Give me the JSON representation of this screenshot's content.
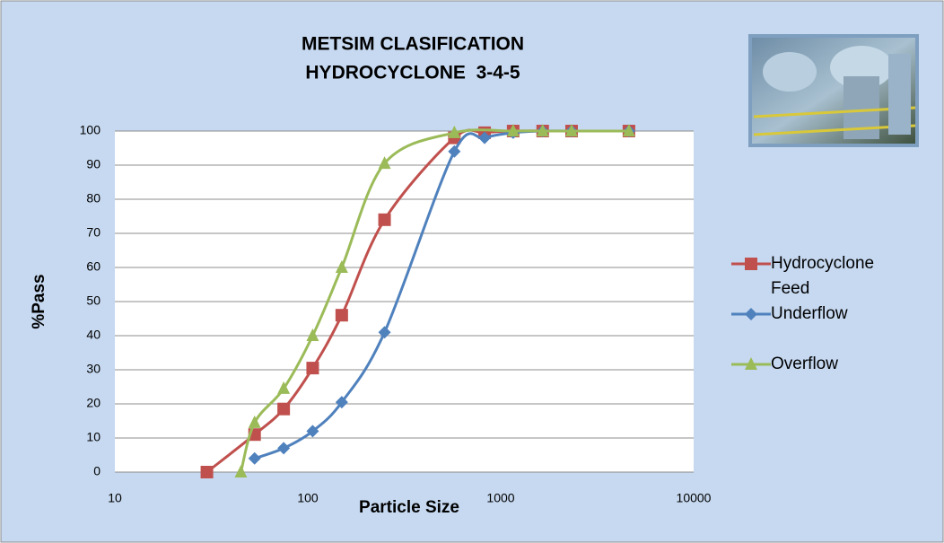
{
  "chart_data": {
    "type": "line",
    "title": [
      "METSIM CLASIFICATION",
      "HYDROCYCLONE  3-4-5"
    ],
    "x_label": "Particle Size",
    "y_label": "%Pass",
    "xlim": [
      10,
      10000
    ],
    "xticks": [
      10,
      100,
      1000,
      10000
    ],
    "xscale": "log",
    "ylim": [
      0,
      100
    ],
    "yticks": [
      0,
      10,
      20,
      30,
      40,
      50,
      60,
      70,
      80,
      90,
      100
    ],
    "grid": true,
    "series": [
      {
        "name": "Hydrocyclone Feed",
        "color": "#c0504d",
        "marker": "square",
        "x": [
          30,
          53,
          75,
          106,
          150,
          250,
          575,
          825,
          1160,
          1650,
          2330,
          4620
        ],
        "values": [
          0,
          11,
          18.5,
          30.5,
          46,
          74,
          98,
          99.5,
          100,
          100,
          100,
          100
        ]
      },
      {
        "name": "Underflow",
        "color": "#4f81bd",
        "marker": "diamond",
        "x": [
          53,
          75,
          106,
          150,
          250,
          575,
          825,
          1160,
          1650,
          2330,
          4620
        ],
        "values": [
          4,
          7,
          12,
          20.5,
          41,
          94,
          98,
          99.5,
          100,
          100,
          100
        ]
      },
      {
        "name": "Overflow",
        "color": "#9bbb59",
        "marker": "triangle",
        "x": [
          45,
          53,
          75,
          106,
          150,
          250,
          575,
          1160,
          1650,
          2330,
          4620
        ],
        "values": [
          0,
          14.5,
          24.5,
          40,
          60,
          90.5,
          99.5,
          100,
          100,
          100,
          100
        ]
      }
    ]
  }
}
